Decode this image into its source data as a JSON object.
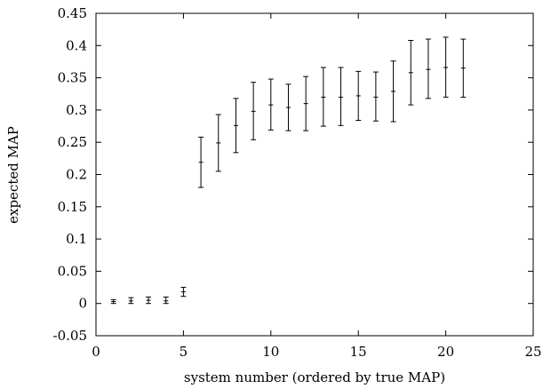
{
  "chart_data": {
    "type": "scatter",
    "xlabel": "system number (ordered by true MAP)",
    "ylabel": "expected MAP",
    "xlim": [
      0,
      25
    ],
    "ylim": [
      -0.05,
      0.45
    ],
    "x_ticks": [
      "0",
      "5",
      "10",
      "15",
      "20",
      "25"
    ],
    "y_ticks": [
      "-0.05",
      "0",
      "0.05",
      "0.1",
      "0.15",
      "0.2",
      "0.25",
      "0.3",
      "0.35",
      "0.4",
      "0.45"
    ],
    "grid": false,
    "legend": "none",
    "series": [
      {
        "x": [
          1,
          2,
          3,
          4,
          5,
          6,
          7,
          8,
          9,
          10,
          11,
          12,
          13,
          14,
          15,
          16,
          17,
          18,
          19,
          20,
          21
        ],
        "y": [
          0.003,
          0.004,
          0.005,
          0.004,
          0.018,
          0.219,
          0.249,
          0.276,
          0.298,
          0.308,
          0.304,
          0.31,
          0.32,
          0.32,
          0.322,
          0.32,
          0.329,
          0.358,
          0.363,
          0.366,
          0.365
        ],
        "y_lower": [
          0.0,
          0.0,
          0.0,
          0.0,
          0.011,
          0.18,
          0.205,
          0.234,
          0.254,
          0.269,
          0.268,
          0.268,
          0.275,
          0.276,
          0.284,
          0.283,
          0.282,
          0.308,
          0.318,
          0.32,
          0.32
        ],
        "y_upper": [
          0.006,
          0.009,
          0.01,
          0.01,
          0.025,
          0.258,
          0.293,
          0.318,
          0.343,
          0.348,
          0.34,
          0.352,
          0.366,
          0.366,
          0.36,
          0.359,
          0.376,
          0.408,
          0.41,
          0.413,
          0.41
        ]
      }
    ]
  }
}
